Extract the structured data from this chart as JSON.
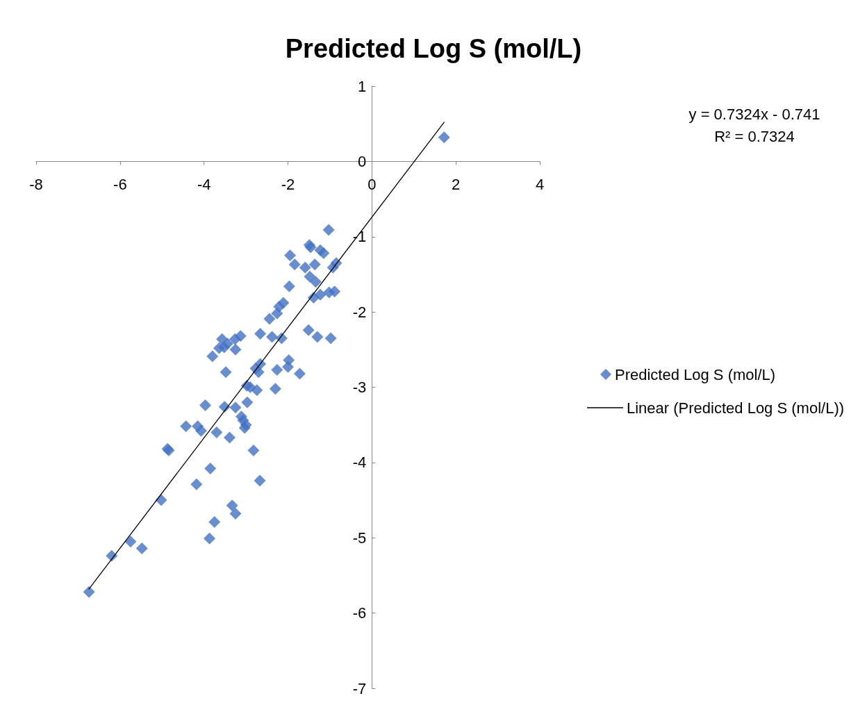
{
  "chart_data": {
    "type": "scatter",
    "title": "Predicted Log S (mol/L)",
    "annotations": [
      "y = 0.7324x - 0.741",
      "R² = 0.7324"
    ],
    "xlim": [
      -8,
      4
    ],
    "xticks": [
      -8,
      -6,
      -4,
      -2,
      0,
      2,
      4
    ],
    "ylim": [
      -7,
      1
    ],
    "yticks": [
      -7,
      -6,
      -5,
      -4,
      -3,
      -2,
      -1,
      0,
      1
    ],
    "grid": false,
    "legend": "right",
    "marker": "diamond",
    "series": [
      {
        "name": "Predicted Log S (mol/L)",
        "color": "#4472c4",
        "type": "scatter",
        "x": [
          1.72,
          -1.03,
          -1.49,
          -1.46,
          -1.23,
          -1.15,
          -1.95,
          -1.84,
          -1.59,
          -1.36,
          -0.85,
          -0.93,
          -1.48,
          -1.34,
          -1.97,
          -1.39,
          -1.23,
          -1.02,
          -0.89,
          -2.11,
          -2.21,
          -2.26,
          -2.44,
          -1.51,
          -1.3,
          -0.98,
          -2.66,
          -2.38,
          -2.15,
          -3.13,
          -3.26,
          -3.57,
          -3.44,
          -3.64,
          -3.52,
          -3.25,
          -3.8,
          -3.48,
          -1.98,
          -2.0,
          -1.72,
          -2.26,
          -2.66,
          -2.7,
          -2.77,
          -2.98,
          -2.9,
          -2.74,
          -2.3,
          -2.97,
          -3.51,
          -3.25,
          -3.97,
          -3.11,
          -3.07,
          -3.0,
          -3.03,
          -4.43,
          -4.15,
          -4.07,
          -3.7,
          -3.39,
          -4.84,
          -4.87,
          -2.82,
          -3.85,
          -4.18,
          -2.67,
          -5.02,
          -3.33,
          -3.25,
          -3.75,
          -3.87,
          -5.75,
          -6.2,
          -5.48,
          -6.74
        ],
        "values": [
          0.32,
          -0.91,
          -1.11,
          -1.14,
          -1.18,
          -1.22,
          -1.25,
          -1.37,
          -1.41,
          -1.37,
          -1.35,
          -1.41,
          -1.53,
          -1.6,
          -1.66,
          -1.81,
          -1.77,
          -1.74,
          -1.73,
          -1.88,
          -1.93,
          -2.02,
          -2.09,
          -2.24,
          -2.33,
          -2.35,
          -2.29,
          -2.33,
          -2.35,
          -2.32,
          -2.36,
          -2.36,
          -2.42,
          -2.48,
          -2.47,
          -2.5,
          -2.59,
          -2.8,
          -2.64,
          -2.73,
          -2.82,
          -2.77,
          -2.69,
          -2.8,
          -2.75,
          -2.98,
          -3.0,
          -3.04,
          -3.02,
          -3.2,
          -3.26,
          -3.27,
          -3.24,
          -3.39,
          -3.44,
          -3.5,
          -3.54,
          -3.52,
          -3.52,
          -3.58,
          -3.6,
          -3.67,
          -3.84,
          -3.82,
          -3.84,
          -4.08,
          -4.29,
          -4.24,
          -4.5,
          -4.57,
          -4.68,
          -4.79,
          -5.01,
          -5.05,
          -5.24,
          -5.14,
          -5.72
        ]
      },
      {
        "name": "Linear (Predicted Log S (mol/L))",
        "color": "#000000",
        "type": "line",
        "marker": "none",
        "line_style": "solid",
        "x": [
          -6.74,
          1.72
        ],
        "values": [
          -5.68,
          0.52
        ]
      }
    ]
  }
}
